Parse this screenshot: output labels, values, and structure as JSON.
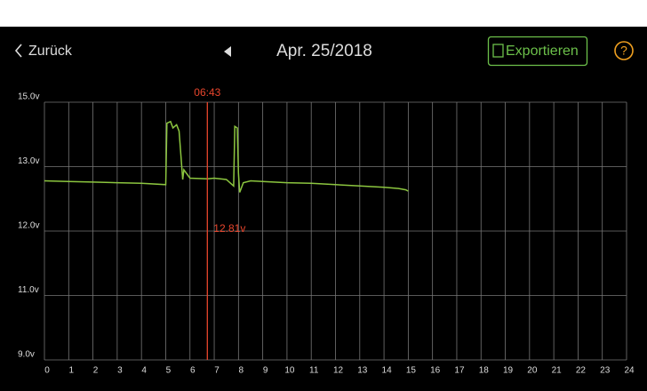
{
  "header": {
    "back": "Zurück",
    "date": "Apr. 25/2018",
    "export": "Exportieren",
    "help": "?"
  },
  "chart_data": {
    "type": "line",
    "xlim": [
      0,
      24
    ],
    "xticks": [
      0,
      1,
      2,
      3,
      4,
      5,
      6,
      7,
      8,
      9,
      10,
      11,
      12,
      13,
      14,
      15,
      16,
      17,
      18,
      19,
      20,
      21,
      22,
      23,
      24
    ],
    "ylim": [
      9,
      15
    ],
    "yticks": [
      {
        "value": 15,
        "label": "15.0v"
      },
      {
        "value": 13,
        "label": "13.0v"
      },
      {
        "value": 12,
        "label": "12.0v"
      },
      {
        "value": 11,
        "label": "11.0v"
      },
      {
        "value": 9,
        "label": "9.0v"
      }
    ],
    "grid": true,
    "x": [
      0,
      1,
      2,
      3,
      4,
      5.0,
      5.05,
      5.2,
      5.3,
      5.45,
      5.55,
      5.7,
      5.75,
      6,
      6.72,
      7,
      7.5,
      7.8,
      7.85,
      7.95,
      8.0,
      8.05,
      8.2,
      8.5,
      9,
      10,
      11,
      12,
      13,
      14,
      14.6,
      14.9,
      15
    ],
    "series": [
      {
        "color": "#8cc63f",
        "values": [
          12.78,
          12.77,
          12.76,
          12.75,
          12.74,
          12.72,
          14.35,
          14.4,
          14.2,
          14.3,
          14.1,
          12.8,
          12.95,
          12.82,
          12.81,
          12.82,
          12.8,
          12.7,
          14.25,
          14.2,
          12.9,
          12.6,
          12.75,
          12.78,
          12.77,
          12.75,
          12.74,
          12.72,
          12.7,
          12.68,
          12.66,
          12.64,
          12.62
        ]
      }
    ],
    "cursor": {
      "x": 6.7167,
      "label": "06:43",
      "value": 12.81,
      "value_label": "12.81v",
      "color": "#e8452c"
    }
  }
}
